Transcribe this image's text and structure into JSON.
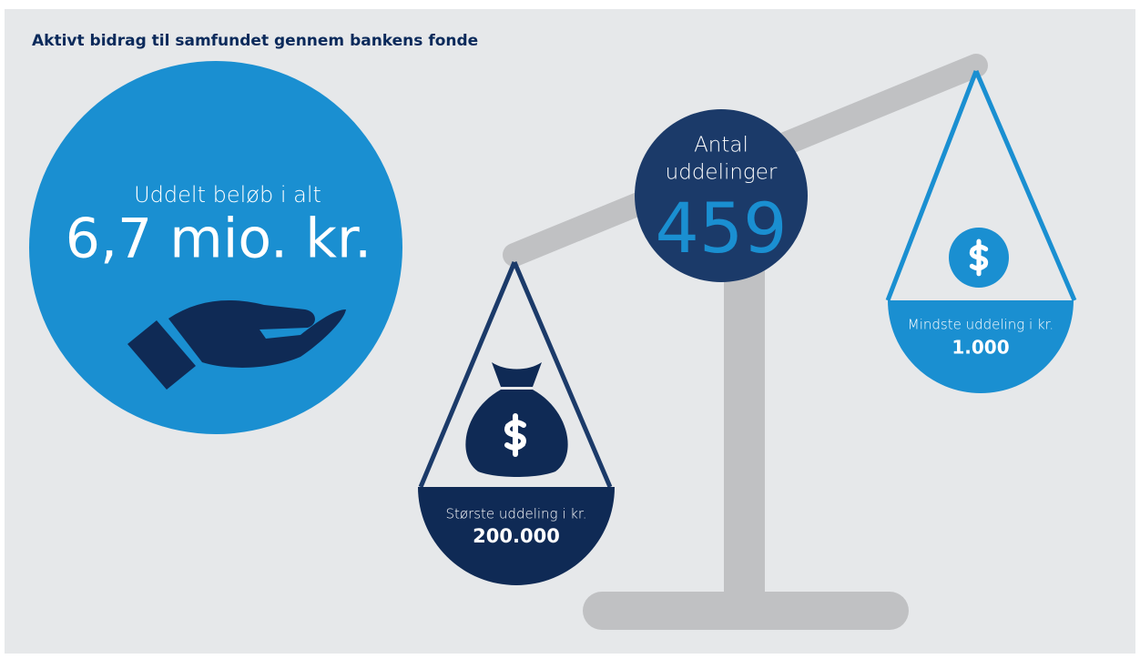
{
  "title": "Aktivt bidrag til samfundet gennem bankens fonde",
  "total": {
    "label": "Uddelt beløb i alt",
    "value": "6,7 mio. kr."
  },
  "count": {
    "label_line1": "Antal",
    "label_line2": "uddelinger",
    "value": "459"
  },
  "largest": {
    "label": "Største uddeling i kr.",
    "value": "200.000"
  },
  "smallest": {
    "label": "Mindste uddeling i kr.",
    "value": "1.000"
  }
}
